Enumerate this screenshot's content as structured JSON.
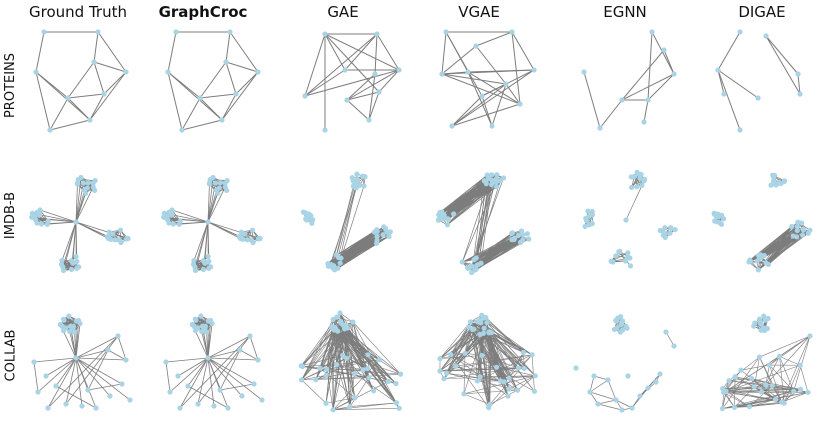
{
  "methods": [
    "Ground Truth",
    "GraphCroc",
    "GAE",
    "VGAE",
    "EGNN",
    "DIGAE"
  ],
  "bold_method": "GraphCroc",
  "datasets": [
    "PROTEINS",
    "IMDB-B",
    "COLLAB"
  ],
  "colors": {
    "edge": "#7d7d7d",
    "node": "#a8d4e6",
    "text": "#111111"
  }
}
